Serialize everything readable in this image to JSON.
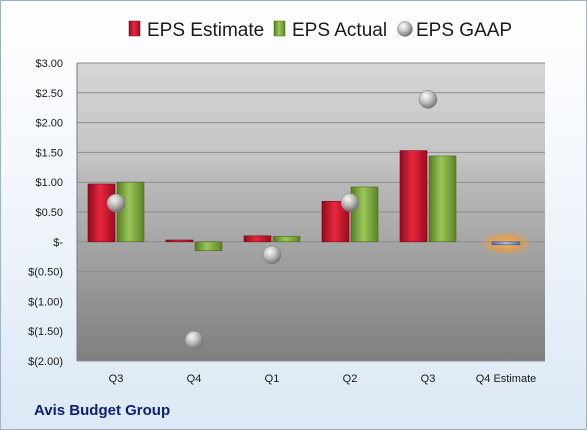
{
  "chart_data": {
    "type": "bar",
    "categories": [
      "Q3",
      "Q4",
      "Q1",
      "Q2",
      "Q3",
      "Q4 Estimate"
    ],
    "series": [
      {
        "name": "EPS Estimate",
        "color": "#c8102e",
        "values": [
          0.97,
          0.03,
          0.1,
          0.68,
          1.53,
          null
        ]
      },
      {
        "name": "EPS Actual",
        "color": "#79a33b",
        "values": [
          1.0,
          -0.15,
          0.09,
          0.92,
          1.44,
          null
        ]
      },
      {
        "name": "EPS GAAP",
        "color": "#b5b5b5",
        "type": "scatter",
        "values": [
          0.65,
          -1.65,
          -0.22,
          0.66,
          2.39,
          null
        ]
      }
    ],
    "highlight": {
      "category": "Q4 Estimate",
      "value": -0.05,
      "color": "#f2a03c"
    },
    "y_ticks": [
      "$3.00",
      "$2.50",
      "$2.00",
      "$1.50",
      "$1.00",
      "$0.50",
      "$-",
      "$(0.50)",
      "$(1.00)",
      "$(1.50)",
      "$(2.00)"
    ],
    "ylim": [
      -2.0,
      3.0
    ],
    "grid": true,
    "legend_position": "top"
  },
  "footer": {
    "company": "Avis Budget Group"
  }
}
